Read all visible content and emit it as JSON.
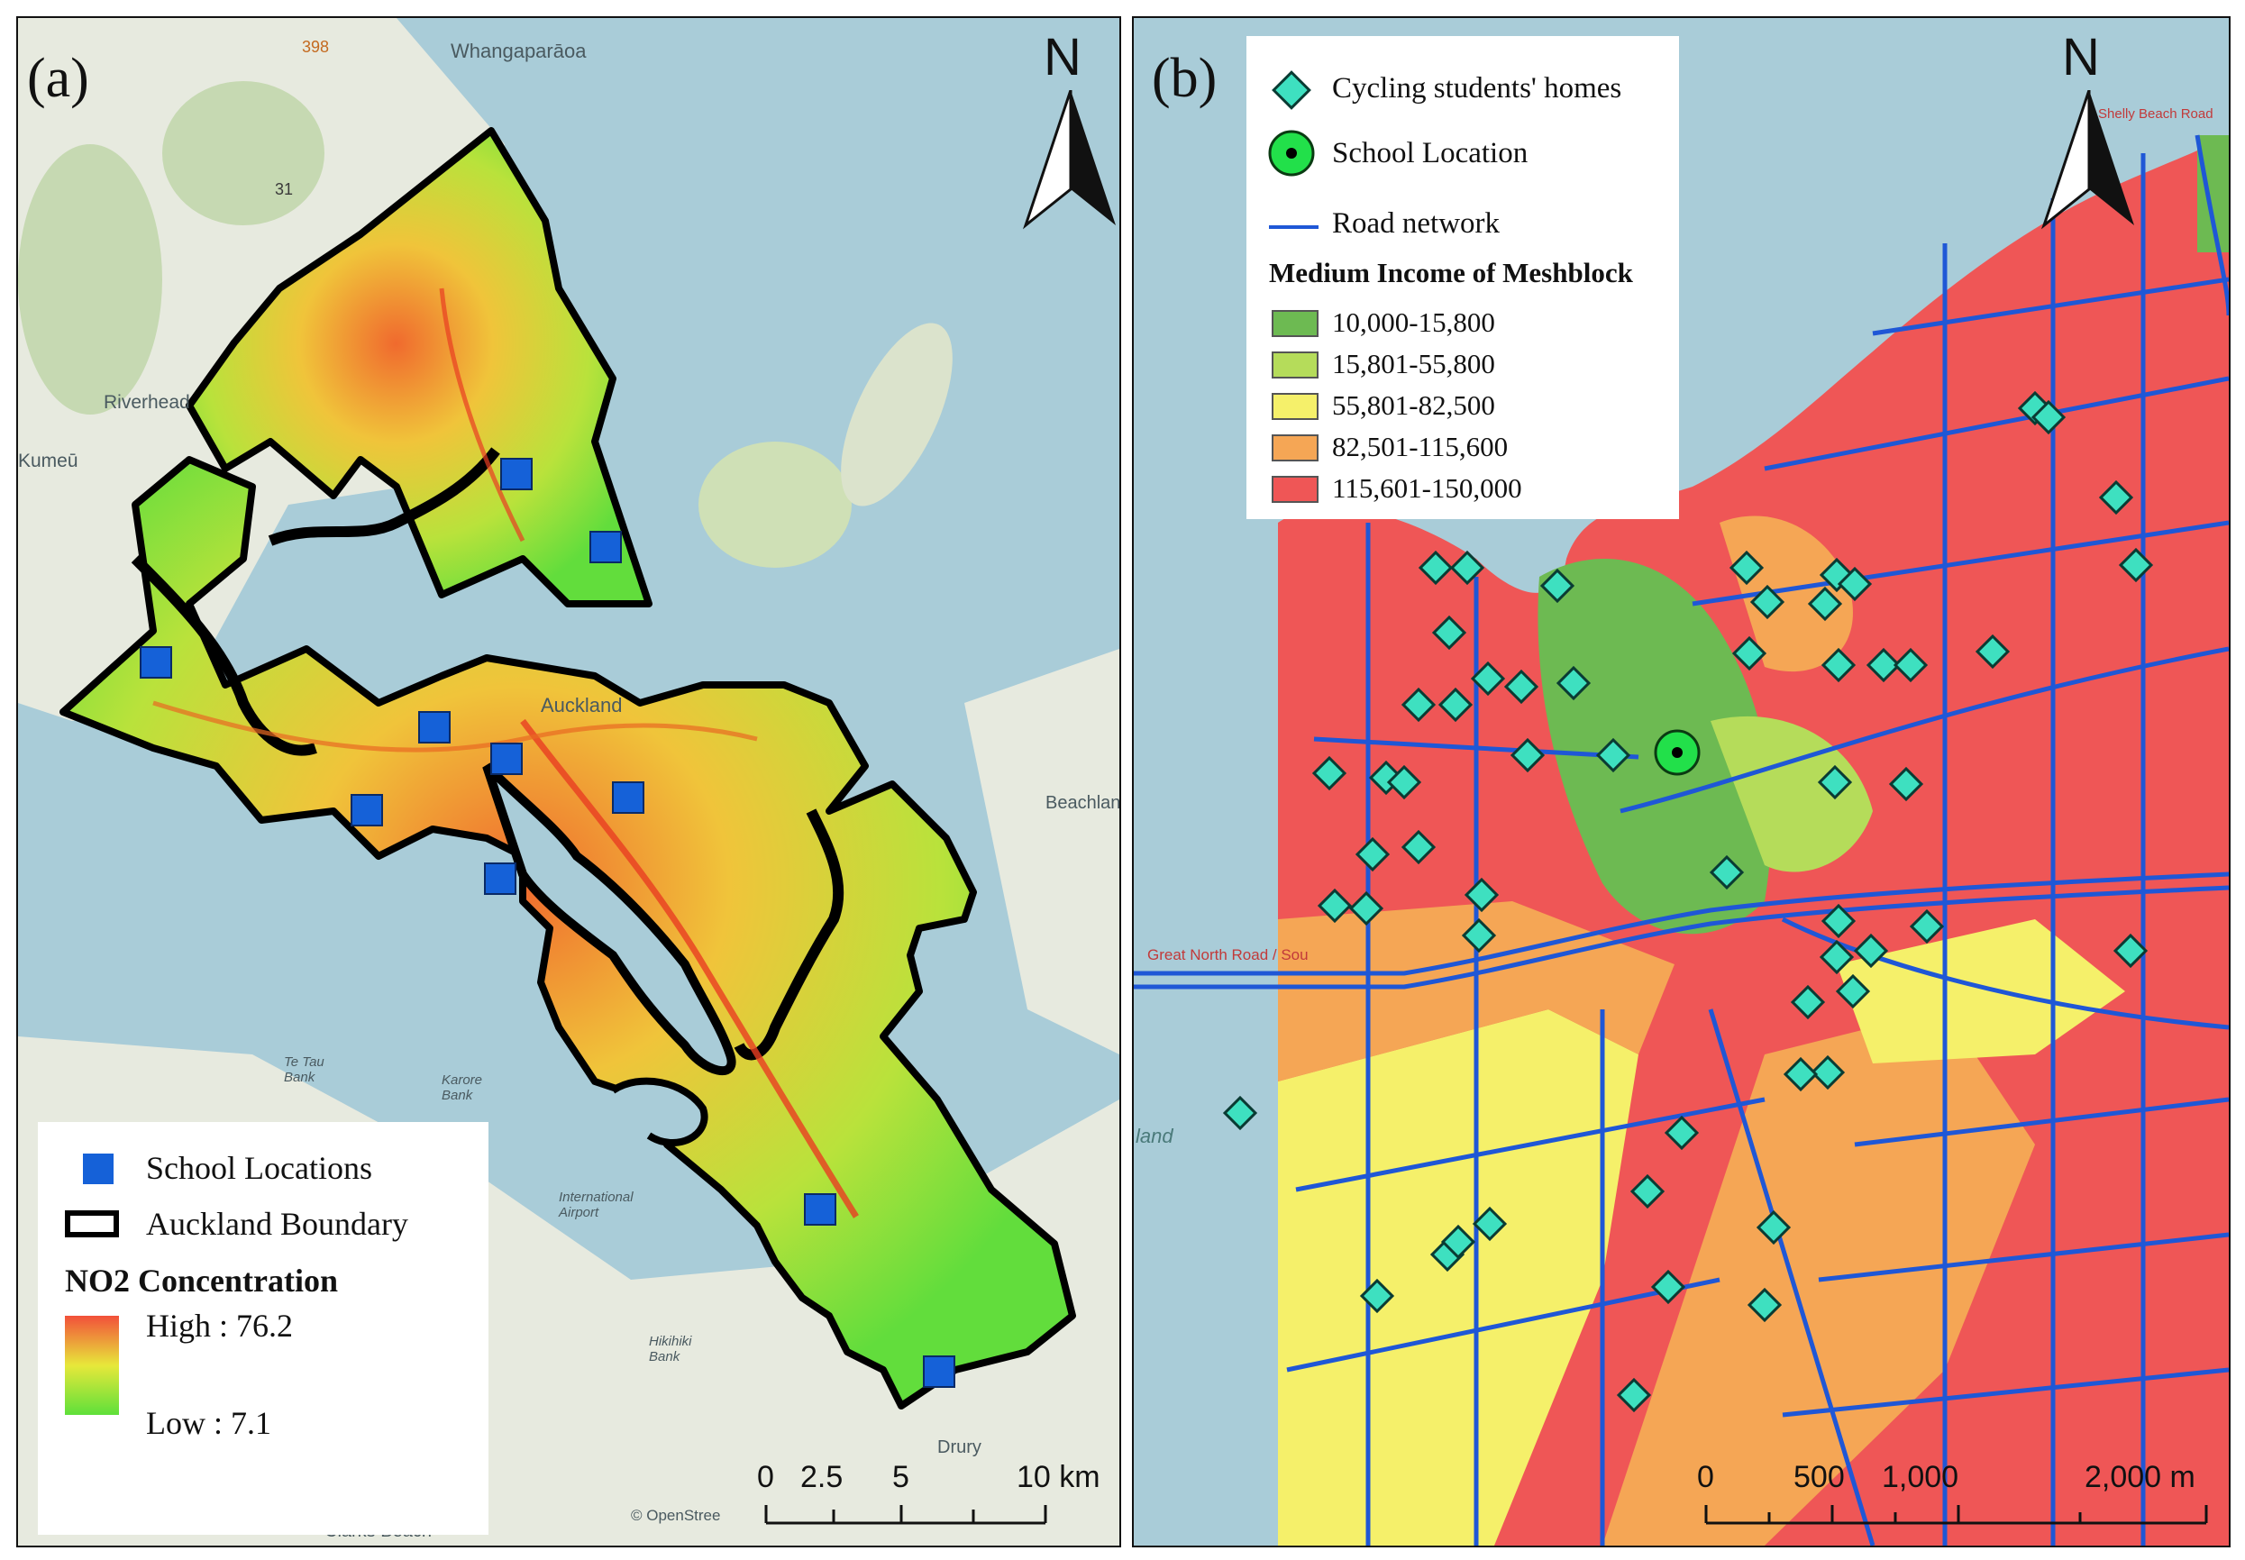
{
  "panel_a": {
    "label": "(a)",
    "north_label": "N",
    "places": {
      "whangaparaoa": "Whangaparāoa",
      "riverhead": "Riverhead",
      "kumeu": "Kumeū",
      "auckland": "Auckland",
      "beachlands": "Beachlan",
      "te_tau_bank": "Te Tau Bank",
      "karore_bank": "Karore Bank",
      "airport": "International Airport",
      "hikihiki_bank": "Hikihiki Bank",
      "drury": "Drury",
      "clarks_beach": "Clarks Beach",
      "road_398": "398",
      "road_31": "31",
      "attribution": "© OpenStree"
    },
    "legend": {
      "school_locations": "School Locations",
      "auckland_boundary": "Auckland Boundary",
      "title": "NO2 Concentration",
      "high": "High : 76.2",
      "low": "Low : 7.1"
    },
    "scale": [
      "0",
      "2.5",
      "5",
      "10 km"
    ],
    "colors": {
      "school": "#1561d8",
      "water": "#a9ccd8",
      "land": "#e9ece3",
      "gradient_high": "#f2503a",
      "gradient_mid": "#e7e83a",
      "gradient_low": "#5ee03a"
    }
  },
  "panel_b": {
    "label": "(b)",
    "north_label": "N",
    "places": {
      "great_north_road": "Great North Road / Sou",
      "shelly_beach_road": "Shelly Beach Road",
      "wahine_land": "land"
    },
    "legend": {
      "homes": "Cycling students' homes",
      "school": "School Location",
      "road": "Road network",
      "title": "Medium Income of Meshblock",
      "classes": [
        {
          "label": "10,000-15,800",
          "color": "#6dba52"
        },
        {
          "label": "15,801-55,800",
          "color": "#b5dc5a"
        },
        {
          "label": "55,801-82,500",
          "color": "#f5f06a"
        },
        {
          "label": "82,501-115,600",
          "color": "#f5a655"
        },
        {
          "label": "115,601-150,000",
          "color": "#ef5656"
        }
      ]
    },
    "scale": [
      "0",
      "500",
      "1,000",
      "2,000 m"
    ],
    "colors": {
      "home": "#3ee0c0",
      "school_fill": "#22e04a",
      "road": "#1f57d6"
    }
  }
}
